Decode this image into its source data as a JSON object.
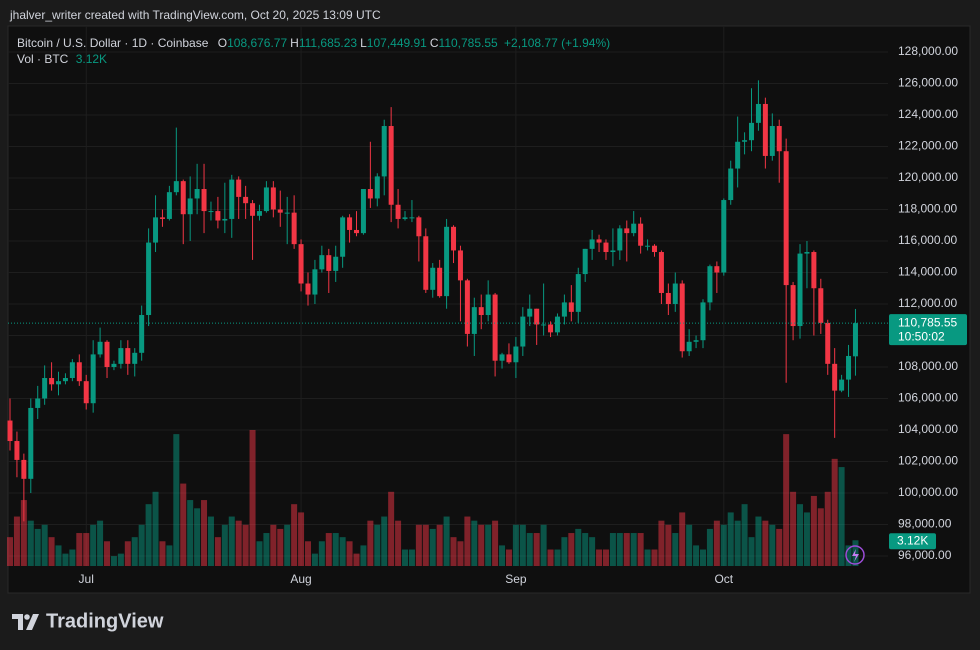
{
  "chart_data": {
    "type": "candlestick",
    "attribution": "jhalver_writer created with TradingView.com, Oct 20, 2025 13:09 UTC",
    "title": "Bitcoin / U.S. Dollar · 1D · Coinbase",
    "legend_ohlc": [
      {
        "key": "O",
        "label": "108,676.77"
      },
      {
        "key": "H",
        "label": "111,685.23"
      },
      {
        "key": "L",
        "label": "107,449.91"
      },
      {
        "key": "C",
        "label": "110,785.55"
      }
    ],
    "change": "+2,108.77 (+1.94%)",
    "volume_name": "Vol · BTC",
    "volume_label": "3.12K",
    "price_label": "110,785.55",
    "countdown": "10:50:02",
    "brand": "TradingView",
    "up_color": "#089981",
    "down_color": "#f23645",
    "grid": true,
    "ylim": [
      95365,
      129650
    ],
    "yticks": [
      {
        "value": 96000,
        "label": "96,000.00"
      },
      {
        "value": 98000,
        "label": "98,000.00"
      },
      {
        "value": 100000,
        "label": "100,000.00"
      },
      {
        "value": 102000,
        "label": "102,000.00"
      },
      {
        "value": 104000,
        "label": "104,000.00"
      },
      {
        "value": 106000,
        "label": "106,000.00"
      },
      {
        "value": 108000,
        "label": "108,000.00"
      },
      {
        "value": 110000,
        "label": "110,000.00"
      },
      {
        "value": 112000,
        "label": "112,000.00"
      },
      {
        "value": 114000,
        "label": "114,000.00"
      },
      {
        "value": 116000,
        "label": "116,000.00"
      },
      {
        "value": 118000,
        "label": "118,000.00"
      },
      {
        "value": 120000,
        "label": "120,000.00"
      },
      {
        "value": 122000,
        "label": "122,000.00"
      },
      {
        "value": 124000,
        "label": "124,000.00"
      },
      {
        "value": 126000,
        "label": "126,000.00"
      },
      {
        "value": 128000,
        "label": "128,000.00"
      }
    ],
    "categories": [
      null,
      null,
      null,
      null,
      null,
      null,
      null,
      null,
      null,
      null,
      null,
      "Jul",
      null,
      null,
      null,
      null,
      null,
      null,
      null,
      null,
      null,
      null,
      null,
      null,
      null,
      null,
      null,
      null,
      null,
      null,
      null,
      null,
      null,
      null,
      null,
      null,
      null,
      null,
      null,
      null,
      null,
      null,
      "Aug",
      null,
      null,
      null,
      null,
      null,
      null,
      null,
      null,
      null,
      null,
      null,
      null,
      null,
      null,
      null,
      null,
      null,
      null,
      null,
      null,
      null,
      null,
      null,
      null,
      null,
      null,
      null,
      null,
      null,
      null,
      "Sep",
      null,
      null,
      null,
      null,
      null,
      null,
      null,
      null,
      null,
      null,
      null,
      null,
      null,
      null,
      null,
      null,
      null,
      null,
      null,
      null,
      null,
      null,
      null,
      null,
      null,
      null,
      null,
      null,
      null,
      "Oct",
      null,
      null,
      null,
      null,
      null,
      null,
      null,
      null,
      null,
      null,
      null,
      null,
      null,
      null,
      null,
      null,
      null,
      null,
      null
    ],
    "open": [
      104600,
      103300,
      102100,
      100900,
      105400,
      106000,
      107300,
      106900,
      107100,
      107300,
      108300,
      107100,
      105700,
      108800,
      109600,
      108000,
      108200,
      109200,
      108200,
      108900,
      111300,
      115900,
      117500,
      117400,
      119100,
      119800,
      117700,
      118700,
      119300,
      117900,
      117900,
      117300,
      117400,
      119900,
      118800,
      118400,
      117600,
      117900,
      119400,
      118000,
      117800,
      117800,
      115800,
      113300,
      112600,
      114200,
      115100,
      114100,
      115000,
      117500,
      116700,
      116500,
      119300,
      118700,
      120100,
      123300,
      118300,
      117400,
      117500,
      117500,
      116300,
      112900,
      114300,
      112500,
      116900,
      115400,
      113500,
      110100,
      111800,
      111300,
      112600,
      108400,
      108800,
      108300,
      109300,
      111200,
      111700,
      110700,
      110700,
      110200,
      111200,
      112100,
      111500,
      113900,
      115500,
      116100,
      115900,
      115300,
      115400,
      116800,
      116500,
      117100,
      115700,
      115700,
      115300,
      112700,
      112000,
      113300,
      109000,
      109600,
      109700,
      112100,
      114400,
      114000,
      118600,
      120600,
      122300,
      122400,
      123500,
      124700,
      121400,
      123300,
      121700,
      113200,
      110600,
      115200,
      115300,
      113000,
      110800,
      108200,
      106500,
      107200,
      108676.77
    ],
    "high": [
      106000,
      103900,
      102500,
      106000,
      106800,
      108100,
      108300,
      107700,
      107600,
      108500,
      108800,
      107500,
      109700,
      110500,
      109700,
      108400,
      109700,
      109700,
      109200,
      111900,
      116800,
      118900,
      118000,
      119500,
      123200,
      119900,
      120100,
      120900,
      120900,
      118500,
      118800,
      119700,
      120200,
      120100,
      119500,
      118600,
      118300,
      119800,
      119800,
      119200,
      118800,
      118900,
      116100,
      114000,
      114800,
      115700,
      115500,
      115700,
      117600,
      117700,
      117900,
      119300,
      122300,
      120300,
      123700,
      124500,
      119300,
      117900,
      118600,
      117600,
      116800,
      114600,
      114800,
      117400,
      117000,
      115700,
      113600,
      112400,
      112600,
      113500,
      112700,
      108900,
      109500,
      109900,
      111800,
      112600,
      111700,
      113300,
      110900,
      111400,
      112600,
      113200,
      114300,
      115500,
      116700,
      116400,
      116100,
      116800,
      117000,
      117300,
      117900,
      117500,
      116100,
      115800,
      115400,
      113300,
      114000,
      113500,
      110400,
      110000,
      112300,
      114500,
      114700,
      118700,
      121100,
      123900,
      122900,
      125700,
      126200,
      125100,
      124100,
      123700,
      122500,
      113400,
      115800,
      116000,
      115400,
      113600,
      111000,
      109200,
      107500,
      109400,
      111685.23
    ],
    "low": [
      102700,
      101000,
      98200,
      100000,
      104700,
      105600,
      106500,
      106200,
      106900,
      107100,
      106800,
      105300,
      105100,
      108600,
      107300,
      107800,
      107900,
      107500,
      107400,
      108400,
      110600,
      115300,
      116900,
      117300,
      118900,
      115800,
      116000,
      117700,
      116500,
      117300,
      116800,
      116500,
      116200,
      117400,
      117400,
      114800,
      117300,
      117800,
      117500,
      116900,
      115800,
      115500,
      112800,
      111900,
      112000,
      114000,
      112700,
      113400,
      114300,
      115900,
      116300,
      116400,
      118100,
      118200,
      118900,
      117200,
      116800,
      117300,
      117200,
      114700,
      112700,
      112400,
      112400,
      111700,
      114600,
      110900,
      109300,
      108700,
      110400,
      110900,
      107400,
      107900,
      108200,
      107300,
      108700,
      110600,
      109400,
      110000,
      109900,
      110000,
      110700,
      110900,
      110800,
      113400,
      114800,
      115300,
      114800,
      114400,
      114800,
      114700,
      116300,
      115200,
      115400,
      115000,
      112000,
      111300,
      111500,
      108600,
      108700,
      109200,
      109200,
      111600,
      112700,
      113800,
      118300,
      119400,
      121500,
      121700,
      123000,
      120600,
      121100,
      119700,
      107000,
      109700,
      109800,
      113000,
      110000,
      110100,
      107500,
      103500,
      106400,
      106100,
      107449.91
    ],
    "close": [
      103300,
      102100,
      100900,
      105400,
      106000,
      107300,
      106900,
      107100,
      107300,
      108300,
      107100,
      105700,
      108800,
      109600,
      108000,
      108200,
      109200,
      108200,
      108900,
      111300,
      115900,
      117500,
      117400,
      119100,
      119800,
      117700,
      118700,
      119300,
      117900,
      117900,
      117300,
      117400,
      119900,
      118800,
      118400,
      117600,
      117900,
      119400,
      118000,
      117800,
      117800,
      115800,
      113300,
      112600,
      114200,
      115100,
      114100,
      115000,
      117500,
      116700,
      116500,
      119300,
      118700,
      120100,
      123300,
      118300,
      117400,
      117500,
      117500,
      116300,
      112900,
      114300,
      112500,
      116900,
      115400,
      113500,
      110100,
      111800,
      111300,
      112600,
      108400,
      108800,
      108300,
      109300,
      111200,
      111700,
      110700,
      110700,
      110200,
      111200,
      112100,
      111500,
      113900,
      115500,
      116100,
      115900,
      115300,
      115400,
      116800,
      116500,
      117100,
      115700,
      115700,
      115300,
      112700,
      112000,
      113300,
      109000,
      109600,
      109700,
      112100,
      114400,
      114000,
      118600,
      120600,
      122300,
      122400,
      123500,
      124700,
      121400,
      123300,
      121700,
      113200,
      110600,
      115200,
      115300,
      113000,
      110800,
      108200,
      106500,
      107200,
      108700,
      110785.55
    ],
    "volume": [
      3500,
      6000,
      8000,
      5500,
      4500,
      5000,
      3500,
      2500,
      1500,
      2000,
      4000,
      4000,
      5000,
      5500,
      3000,
      1200,
      1500,
      3000,
      3500,
      5000,
      7500,
      9000,
      3000,
      2500,
      16000,
      10000,
      8000,
      7000,
      8000,
      6000,
      3500,
      5000,
      6000,
      5500,
      5000,
      16500,
      3000,
      4000,
      5000,
      4500,
      5000,
      7500,
      6500,
      3000,
      1500,
      3000,
      4000,
      4000,
      3500,
      3000,
      1500,
      2500,
      5500,
      5000,
      6000,
      9000,
      5500,
      2000,
      2000,
      5000,
      5000,
      4500,
      5000,
      6000,
      3500,
      3000,
      6000,
      5500,
      5000,
      5000,
      5500,
      2500,
      2000,
      5000,
      5000,
      4000,
      4000,
      5000,
      2000,
      2000,
      3500,
      4000,
      4500,
      4000,
      3500,
      2000,
      2000,
      4000,
      4000,
      4000,
      4000,
      4000,
      2000,
      2000,
      5500,
      5000,
      4000,
      6500,
      5000,
      2500,
      2000,
      4500,
      5500,
      5000,
      6500,
      5500,
      7500,
      3500,
      6000,
      5500,
      5000,
      4500,
      16000,
      9000,
      7500,
      6500,
      8500,
      7000,
      9000,
      13000,
      12000,
      2500,
      3120
    ]
  }
}
